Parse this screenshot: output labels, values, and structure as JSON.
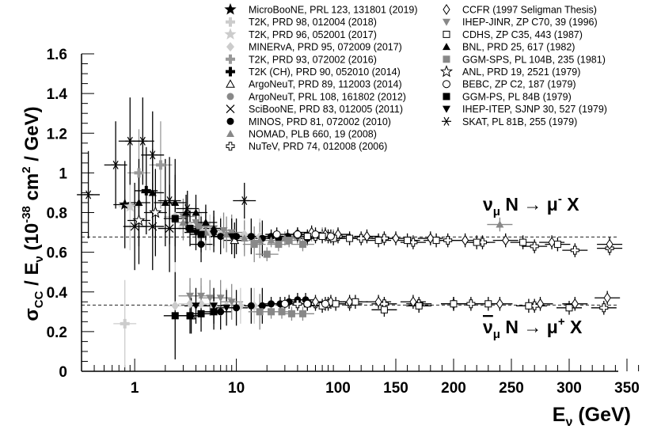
{
  "chart_data": {
    "type": "scatter",
    "title": "",
    "ylabel": "σ_CC / E_ν (10^-38 cm^2 / GeV)",
    "xlabel": "E_ν (GeV)",
    "ylim": [
      0,
      1.6
    ],
    "y_ticks": [
      "0",
      "0.2",
      "0.4",
      "0.6",
      "0.8",
      "1",
      "1.2",
      "1.4",
      "1.6"
    ],
    "x_scale": "log from 0.3 to 100 GeV, linear from 100 to 370 GeV",
    "x_ticks": [
      "1",
      "10",
      "100",
      "150",
      "200",
      "250",
      "300",
      "350"
    ],
    "reference_lines": [
      {
        "label": "ν_μ N → μ⁻ X",
        "y": 0.677
      },
      {
        "label": "ν̄_μ N → μ⁺ X",
        "y": 0.334
      }
    ],
    "legend_placement": "top",
    "legend": [
      {
        "label": "MicroBooNE, PRL 123, 131801 (2019)",
        "marker": "star-filled",
        "color": "#000000"
      },
      {
        "label": "T2K, PRD 98, 012004 (2018)",
        "marker": "cross-filled",
        "color": "#cccccc"
      },
      {
        "label": "T2K, PRD 96, 052001 (2017)",
        "marker": "star-filled",
        "color": "#cccccc"
      },
      {
        "label": "MINERvA, PRD 95, 072009 (2017)",
        "marker": "diamond-filled",
        "color": "#cccccc"
      },
      {
        "label": "T2K, PRD 93, 072002  (2016)",
        "marker": "cross-filled",
        "color": "#999999"
      },
      {
        "label": "T2K (CH), PRD 90, 052010 (2014)",
        "marker": "cross-filled",
        "color": "#000000"
      },
      {
        "label": "ArgoNeuT, PRD 89, 112003 (2014)",
        "marker": "triangle-open",
        "color": "#000000"
      },
      {
        "label": "ArgoNeuT, PRL 108, 161802 (2012)",
        "marker": "circle-filled",
        "color": "#888888"
      },
      {
        "label": "SciBooNE, PRD 83, 012005 (2011)",
        "marker": "x",
        "color": "#000000"
      },
      {
        "label": "MINOS, PRD 81, 072002 (2010)",
        "marker": "circle-filled",
        "color": "#000000"
      },
      {
        "label": "NOMAD, PLB 660, 19 (2008)",
        "marker": "triangle-filled",
        "color": "#888888"
      },
      {
        "label": "NuTeV, PRD 74, 012008 (2006)",
        "marker": "cross-open",
        "color": "#000000"
      },
      {
        "label": "CCFR (1997 Seligman Thesis)",
        "marker": "diamond-open",
        "color": "#000000"
      },
      {
        "label": "IHEP-JINR, ZP C70, 39 (1996)",
        "marker": "triangle-down-filled",
        "color": "#888888"
      },
      {
        "label": "CDHS, ZP C35, 443 (1987)",
        "marker": "square-open",
        "color": "#000000"
      },
      {
        "label": "BNL, PRD 25, 617 (1982)",
        "marker": "triangle-filled",
        "color": "#000000"
      },
      {
        "label": "GGM-SPS, PL 104B, 235 (1981)",
        "marker": "square-filled",
        "color": "#888888"
      },
      {
        "label": "ANL, PRD 19, 2521 (1979)",
        "marker": "star-open",
        "color": "#000000"
      },
      {
        "label": "BEBC, ZP C2, 187 (1979)",
        "marker": "circle-open",
        "color": "#000000"
      },
      {
        "label": "GGM-PS, PL 84B (1979)",
        "marker": "square-filled",
        "color": "#000000"
      },
      {
        "label": "IHEP-ITEP, SJNP 30, 527 (1979)",
        "marker": "triangle-down-filled",
        "color": "#000000"
      },
      {
        "label": "SKAT, PL 81B, 255 (1979)",
        "marker": "asterisk",
        "color": "#000000"
      }
    ],
    "series": [
      {
        "name": "MicroBooNE, PRL 123, 131801 (2019)",
        "points": [
          [
            0.8,
            0.84
          ]
        ]
      },
      {
        "name": "T2K, PRD 98, 012004 (2018)",
        "points": [
          [
            0.8,
            0.24
          ]
        ]
      },
      {
        "name": "T2K, PRD 96, 052001 (2017)",
        "points": [
          [
            0.9,
            0.83
          ]
        ]
      },
      {
        "name": "MINERvA, PRD 95, 072009 (2017)",
        "points": [
          [
            2.5,
            0.78
          ],
          [
            3.5,
            0.73
          ],
          [
            4.5,
            0.71
          ],
          [
            5.5,
            0.7
          ],
          [
            7,
            0.69
          ],
          [
            9,
            0.68
          ],
          [
            12,
            0.69
          ],
          [
            17,
            0.68
          ],
          [
            2.5,
            0.33
          ],
          [
            3.5,
            0.34
          ],
          [
            4.5,
            0.34
          ],
          [
            6,
            0.33
          ],
          [
            8,
            0.33
          ],
          [
            11,
            0.33
          ],
          [
            15,
            0.33
          ]
        ]
      },
      {
        "name": "T2K, PRD 93, 072002  (2016)",
        "points": [
          [
            1.1,
            1.0
          ],
          [
            1.8,
            1.04
          ]
        ]
      },
      {
        "name": "T2K (CH), PRD 90, 052010 (2014)",
        "points": [
          [
            1.3,
            0.91
          ]
        ]
      },
      {
        "name": "ArgoNeuT, PRD 89, 112003 (2014)",
        "points": [
          [
            9.6,
            0.66
          ],
          [
            3.6,
            0.28
          ]
        ]
      },
      {
        "name": "ArgoNeuT, PRL 108, 161802 (2012)",
        "points": [
          [
            4.3,
            0.73
          ]
        ]
      },
      {
        "name": "SciBooNE, PRD 83, 012005 (2011)",
        "points": [
          [
            1.0,
            0.73
          ],
          [
            1.5,
            0.73
          ],
          [
            2.2,
            0.72
          ]
        ]
      },
      {
        "name": "MINOS, PRD 81, 072002 (2010)",
        "points": [
          [
            4.5,
            0.64
          ],
          [
            7,
            0.68
          ],
          [
            10,
            0.68
          ],
          [
            14,
            0.68
          ],
          [
            18,
            0.67
          ],
          [
            22,
            0.68
          ],
          [
            26,
            0.67
          ],
          [
            32,
            0.68
          ],
          [
            40,
            0.68
          ],
          [
            50,
            0.67
          ],
          [
            7,
            0.3
          ],
          [
            10,
            0.32
          ],
          [
            14,
            0.33
          ],
          [
            18,
            0.33
          ],
          [
            22,
            0.34
          ],
          [
            27,
            0.34
          ],
          [
            33,
            0.35
          ],
          [
            40,
            0.36
          ],
          [
            48,
            0.36
          ]
        ]
      },
      {
        "name": "NOMAD, PLB 660, 19 (2008)",
        "points": [
          [
            3,
            0.75
          ],
          [
            5,
            0.7
          ],
          [
            8,
            0.69
          ],
          [
            12,
            0.67
          ],
          [
            17,
            0.66
          ],
          [
            22,
            0.66
          ],
          [
            30,
            0.67
          ],
          [
            40,
            0.68
          ],
          [
            55,
            0.69
          ],
          [
            70,
            0.69
          ],
          [
            90,
            0.68
          ],
          [
            240,
            0.74
          ]
        ]
      },
      {
        "name": "NuTeV, PRD 74, 012008 (2006)",
        "points": [
          [
            40,
            0.69
          ],
          [
            60,
            0.68
          ],
          [
            80,
            0.68
          ],
          [
            100,
            0.68
          ],
          [
            120,
            0.67
          ],
          [
            140,
            0.67
          ],
          [
            165,
            0.65
          ],
          [
            195,
            0.66
          ],
          [
            225,
            0.65
          ],
          [
            270,
            0.63
          ],
          [
            305,
            0.61
          ],
          [
            335,
            0.62
          ],
          [
            40,
            0.34
          ],
          [
            60,
            0.34
          ],
          [
            80,
            0.34
          ],
          [
            110,
            0.34
          ],
          [
            140,
            0.34
          ],
          [
            170,
            0.34
          ],
          [
            215,
            0.34
          ],
          [
            270,
            0.33
          ],
          [
            330,
            0.32
          ]
        ]
      },
      {
        "name": "CCFR (1997 Seligman Thesis)",
        "points": [
          [
            55,
            0.7
          ],
          [
            75,
            0.69
          ],
          [
            100,
            0.69
          ],
          [
            125,
            0.68
          ],
          [
            150,
            0.67
          ],
          [
            180,
            0.67
          ],
          [
            210,
            0.66
          ],
          [
            245,
            0.66
          ],
          [
            285,
            0.65
          ],
          [
            335,
            0.64
          ],
          [
            60,
            0.35
          ],
          [
            85,
            0.35
          ],
          [
            110,
            0.35
          ],
          [
            135,
            0.35
          ],
          [
            165,
            0.35
          ],
          [
            200,
            0.34
          ],
          [
            240,
            0.34
          ],
          [
            275,
            0.34
          ],
          [
            305,
            0.34
          ],
          [
            333,
            0.37
          ]
        ]
      },
      {
        "name": "IHEP-JINR, ZP C70, 39 (1996)",
        "points": [
          [
            3,
            0.78
          ],
          [
            4,
            0.75
          ],
          [
            5,
            0.73
          ],
          [
            6,
            0.72
          ],
          [
            7.5,
            0.71
          ],
          [
            9,
            0.7
          ],
          [
            3.5,
            0.38
          ],
          [
            4.5,
            0.38
          ],
          [
            5.5,
            0.37
          ],
          [
            7,
            0.37
          ],
          [
            9,
            0.35
          ]
        ]
      },
      {
        "name": "CDHS, ZP C35, 443 (1987)",
        "points": [
          [
            50,
            0.68
          ],
          [
            70,
            0.68
          ],
          [
            90,
            0.67
          ],
          [
            110,
            0.67
          ],
          [
            135,
            0.66
          ],
          [
            160,
            0.66
          ],
          [
            185,
            0.66
          ],
          [
            220,
            0.65
          ],
          [
            260,
            0.65
          ],
          [
            290,
            0.64
          ],
          [
            50,
            0.34
          ],
          [
            70,
            0.33
          ],
          [
            95,
            0.34
          ],
          [
            115,
            0.35
          ],
          [
            140,
            0.31
          ],
          [
            170,
            0.33
          ],
          [
            200,
            0.34
          ],
          [
            230,
            0.34
          ],
          [
            265,
            0.33
          ],
          [
            300,
            0.32
          ]
        ]
      },
      {
        "name": "BNL, PRD 25, 617 (1982)",
        "points": [
          [
            1.1,
            0.85
          ],
          [
            1.5,
            0.9
          ],
          [
            2,
            0.85
          ],
          [
            2.5,
            0.85
          ],
          [
            3.2,
            0.8
          ],
          [
            4,
            0.8
          ],
          [
            5,
            0.75
          ],
          [
            6,
            0.72
          ]
        ]
      },
      {
        "name": "GGM-SPS, PL 104B, 235 (1981)",
        "points": [
          [
            15,
            0.64
          ],
          [
            20,
            0.59
          ],
          [
            26,
            0.64
          ],
          [
            33,
            0.66
          ],
          [
            45,
            0.64
          ],
          [
            17,
            0.3
          ],
          [
            22,
            0.3
          ],
          [
            28,
            0.3
          ],
          [
            35,
            0.29
          ],
          [
            45,
            0.29
          ]
        ]
      },
      {
        "name": "ANL, PRD 19, 2521 (1979)",
        "points": [
          [
            1.1,
            0.76
          ],
          [
            1.6,
            0.8
          ]
        ]
      },
      {
        "name": "BEBC, ZP C2, 187 (1979)",
        "points": [
          [
            25,
            0.69
          ],
          [
            40,
            0.69
          ],
          [
            60,
            0.69
          ],
          [
            85,
            0.68
          ],
          [
            30,
            0.34
          ],
          [
            50,
            0.34
          ],
          [
            75,
            0.34
          ]
        ]
      },
      {
        "name": "GGM-PS, PL 84B (1979)",
        "points": [
          [
            2.5,
            0.77
          ],
          [
            3.5,
            0.72
          ],
          [
            4.5,
            0.69
          ],
          [
            2.5,
            0.28
          ],
          [
            3.5,
            0.28
          ],
          [
            4.5,
            0.29
          ],
          [
            6,
            0.3
          ]
        ]
      },
      {
        "name": "IHEP-ITEP, SJNP 30, 527 (1979)",
        "points": [
          [
            4,
            0.7
          ],
          [
            6,
            0.69
          ],
          [
            9,
            0.68
          ],
          [
            4,
            0.33
          ],
          [
            6,
            0.33
          ],
          [
            8,
            0.32
          ]
        ]
      },
      {
        "name": "SKAT, PL 81B, 255 (1979)",
        "points": [
          [
            0.35,
            0.89
          ],
          [
            0.65,
            1.04
          ],
          [
            0.9,
            1.16
          ],
          [
            1.2,
            1.16
          ],
          [
            1.5,
            1.09
          ],
          [
            2.2,
            0.86
          ],
          [
            3.3,
            0.82
          ],
          [
            12,
            0.86
          ]
        ]
      }
    ]
  },
  "labels": {
    "nu_reaction": "νμ N → μ⁻ X",
    "nubar_reaction": "ν̄μ N → μ⁺ X"
  }
}
